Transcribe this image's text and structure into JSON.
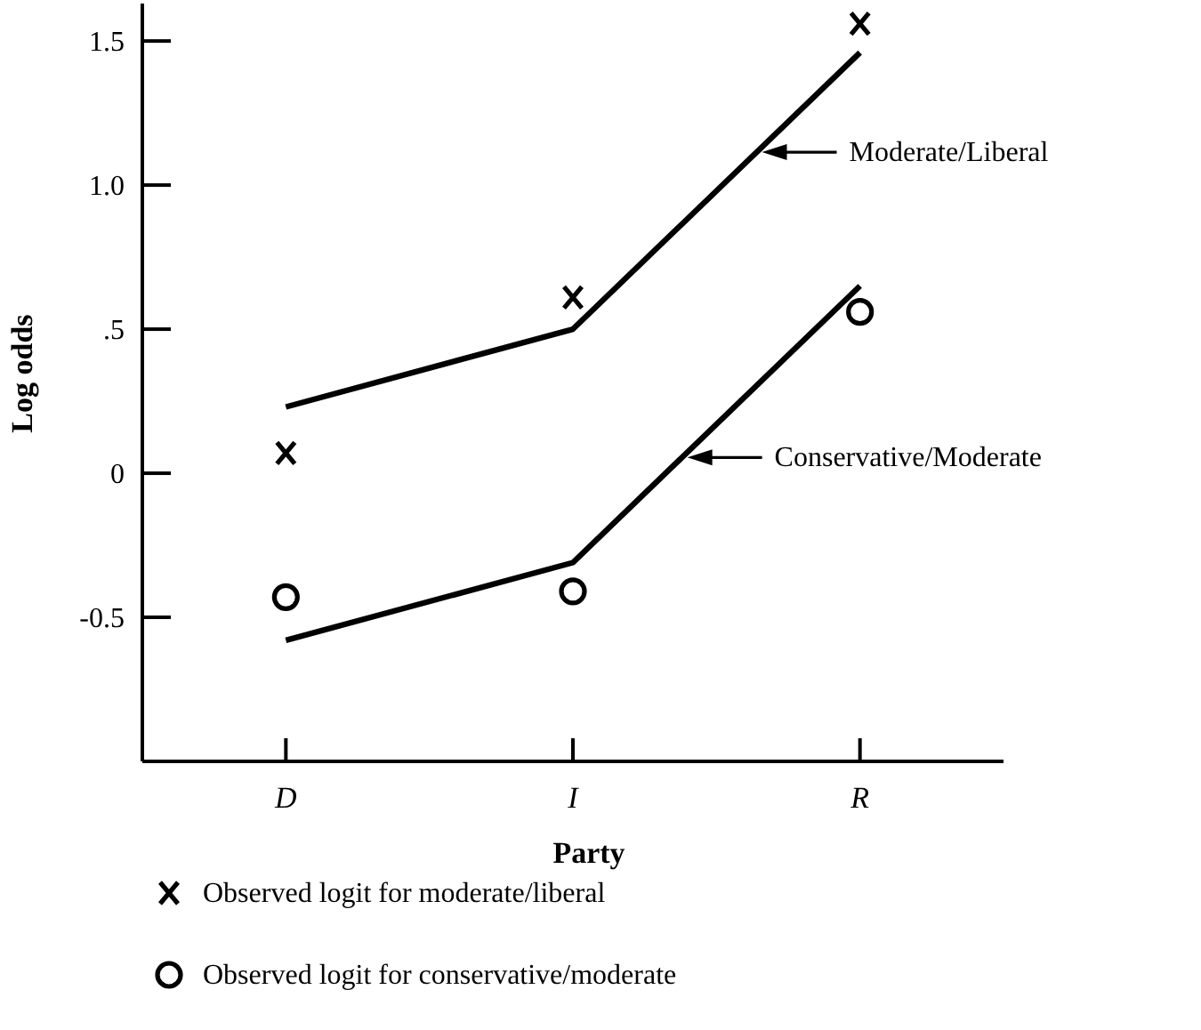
{
  "chart_data": {
    "type": "line",
    "xlabel": "Party",
    "ylabel": "Log odds",
    "categories": [
      "D",
      "I",
      "R"
    ],
    "ylim": [
      -1,
      1.63
    ],
    "yticks": [
      -0.5,
      0,
      {
        "value": 0.5,
        "label": ".5"
      },
      {
        "value": 1,
        "label": "1.0"
      },
      1.5
    ],
    "legend": "bottom",
    "grid": false,
    "series": [
      {
        "name": "Moderate/Liberal",
        "color": "#000000",
        "marker": "none",
        "values": [
          0.23,
          0.5,
          1.46
        ]
      },
      {
        "name": "Conservative/Moderate",
        "color": "#000000",
        "marker": "none",
        "values": [
          -0.58,
          -0.31,
          0.65
        ]
      },
      {
        "name": "Observed logit for moderate/liberal",
        "type": "scatter",
        "color": "#000000",
        "marker": "cross",
        "x": [
          "D",
          "I",
          "R"
        ],
        "values": [
          0.07,
          0.61,
          1.56
        ]
      },
      {
        "name": "Observed logit for conservative/moderate",
        "type": "scatter",
        "color": "#000000",
        "marker": "circle",
        "x": [
          "D",
          "I",
          "R"
        ],
        "values": [
          -0.43,
          -0.41,
          0.56
        ]
      }
    ]
  }
}
